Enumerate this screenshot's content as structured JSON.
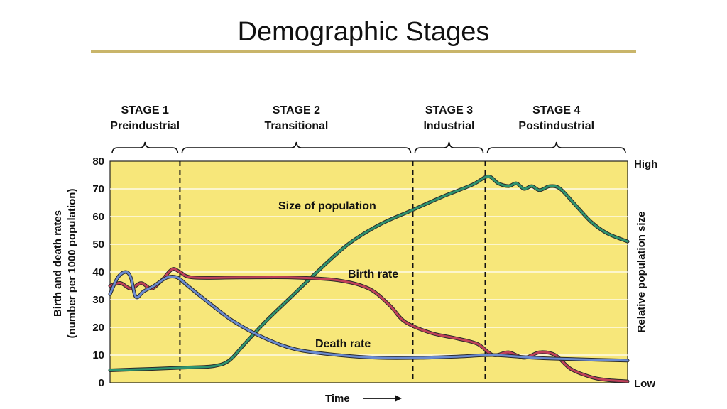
{
  "slide": {
    "title": "Demographic Stages"
  },
  "chart_data": {
    "type": "line",
    "xlabel": "Time",
    "ylabel_lines": [
      "Birth and death rates",
      "(number per 1000 population)"
    ],
    "ylabel_right": "Relative population size",
    "right_axis_labels": {
      "top": "High",
      "bottom": "Low"
    },
    "ylim": [
      0,
      80
    ],
    "yticks": [
      0,
      10,
      20,
      30,
      40,
      50,
      60,
      70,
      80
    ],
    "grid": true,
    "stages": [
      {
        "label": "STAGE 1",
        "name": "Preindustrial",
        "start": 0,
        "end": 13.5
      },
      {
        "label": "STAGE 2",
        "name": "Transitional",
        "start": 13.5,
        "end": 58.5
      },
      {
        "label": "STAGE 3",
        "name": "Industrial",
        "start": 58.5,
        "end": 72.5
      },
      {
        "label": "STAGE 4",
        "name": "Postindustrial",
        "start": 72.5,
        "end": 100
      }
    ],
    "series": [
      {
        "name": "Birth rate",
        "color": "#c0405a",
        "points": [
          [
            0,
            35
          ],
          [
            2,
            36
          ],
          [
            4,
            34
          ],
          [
            6,
            36
          ],
          [
            8,
            34
          ],
          [
            10,
            37
          ],
          [
            12,
            41
          ],
          [
            13.5,
            40
          ],
          [
            16,
            38
          ],
          [
            25,
            38
          ],
          [
            35,
            38
          ],
          [
            44,
            37
          ],
          [
            50,
            34
          ],
          [
            54,
            28
          ],
          [
            57,
            22
          ],
          [
            62,
            18
          ],
          [
            67,
            16
          ],
          [
            71,
            14
          ],
          [
            74,
            10
          ],
          [
            77,
            11
          ],
          [
            80,
            9
          ],
          [
            83,
            11
          ],
          [
            86,
            10
          ],
          [
            89,
            5
          ],
          [
            93,
            2
          ],
          [
            96,
            1
          ],
          [
            100,
            0.5
          ]
        ]
      },
      {
        "name": "Death rate",
        "color": "#6a8ad0",
        "points": [
          [
            0,
            32
          ],
          [
            1.5,
            38
          ],
          [
            3,
            40
          ],
          [
            4,
            38
          ],
          [
            5,
            31
          ],
          [
            6.5,
            33
          ],
          [
            8.5,
            35
          ],
          [
            11,
            38
          ],
          [
            13,
            38
          ],
          [
            15,
            35
          ],
          [
            19,
            29
          ],
          [
            24,
            22
          ],
          [
            30,
            16
          ],
          [
            36,
            12
          ],
          [
            44,
            10
          ],
          [
            52,
            9
          ],
          [
            60,
            9
          ],
          [
            68,
            9.5
          ],
          [
            74,
            10
          ],
          [
            82,
            9
          ],
          [
            90,
            8.5
          ],
          [
            100,
            8
          ]
        ]
      },
      {
        "name": "Size of population",
        "color": "#2e9470",
        "points": [
          [
            0,
            4.5
          ],
          [
            8,
            5
          ],
          [
            15,
            5.5
          ],
          [
            20,
            6
          ],
          [
            23,
            8
          ],
          [
            26,
            14
          ],
          [
            30,
            22
          ],
          [
            35,
            31
          ],
          [
            40,
            40
          ],
          [
            46,
            50
          ],
          [
            52,
            57
          ],
          [
            58,
            62
          ],
          [
            64,
            67
          ],
          [
            70,
            71.5
          ],
          [
            73,
            74.5
          ],
          [
            75,
            72
          ],
          [
            77,
            71
          ],
          [
            78.5,
            72
          ],
          [
            80,
            70
          ],
          [
            81.5,
            71
          ],
          [
            83,
            69.5
          ],
          [
            85,
            71
          ],
          [
            87,
            70
          ],
          [
            90,
            64
          ],
          [
            93,
            58
          ],
          [
            96,
            54
          ],
          [
            100,
            51
          ]
        ]
      }
    ]
  }
}
